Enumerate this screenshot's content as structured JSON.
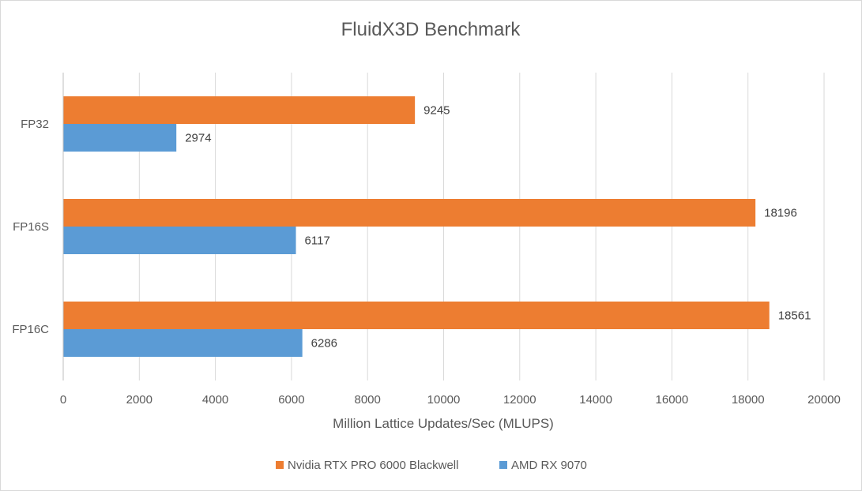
{
  "chart_data": {
    "type": "bar",
    "orientation": "horizontal",
    "title": "FluidX3D Benchmark",
    "xlabel": "Million Lattice Updates/Sec (MLUPS)",
    "ylabel": "",
    "categories": [
      "FP32",
      "FP16S",
      "FP16C"
    ],
    "series": [
      {
        "name": "Nvidia RTX PRO 6000 Blackwell",
        "color": "#ED7D31",
        "values": [
          9245,
          18196,
          18561
        ]
      },
      {
        "name": "AMD RX 9070",
        "color": "#5B9BD5",
        "values": [
          2974,
          6117,
          6286
        ]
      }
    ],
    "xlim": [
      0,
      20000
    ],
    "x_ticks": [
      "0",
      "2000",
      "4000",
      "6000",
      "8000",
      "10000",
      "12000",
      "14000",
      "16000",
      "18000",
      "20000"
    ],
    "grid": true,
    "legend_position": "bottom",
    "data_labels": true
  }
}
